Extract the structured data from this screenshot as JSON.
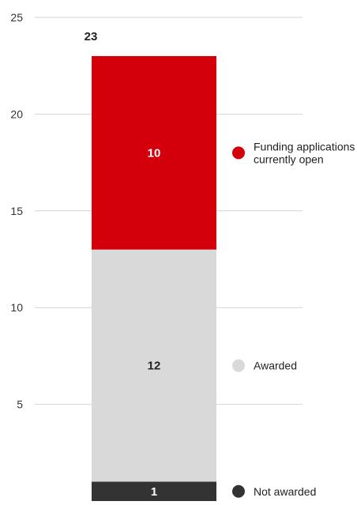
{
  "chart_data": {
    "type": "bar",
    "stacked": true,
    "title": "",
    "xlabel": "",
    "ylabel": "",
    "ylim": [
      0,
      25
    ],
    "yticks": [
      5,
      10,
      15,
      20,
      25
    ],
    "grid": true,
    "total": 23,
    "total_label": "23",
    "legend_position": "right",
    "series": [
      {
        "name": "Not awarded",
        "value": 1,
        "value_label": "1",
        "color": "#333333",
        "label_color": "#ffffff"
      },
      {
        "name": "Awarded",
        "value": 12,
        "value_label": "12",
        "color": "#d9d9d9",
        "label_color": "#222222"
      },
      {
        "name": "Funding applications currently open",
        "name_lines": [
          "Funding applications",
          "currently open"
        ],
        "value": 10,
        "value_label": "10",
        "color": "#d3000b",
        "label_color": "#ffffff"
      }
    ]
  }
}
